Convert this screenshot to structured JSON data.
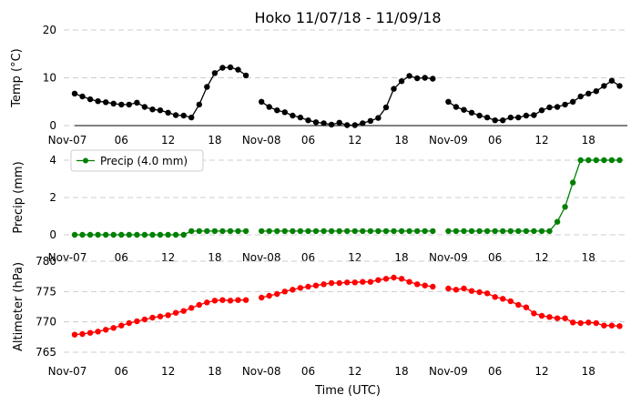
{
  "chart_data": {
    "title": "Hoko 11/07/18 - 11/09/18",
    "xlabel": "Time (UTC)",
    "x_tick_labels": [
      "Nov-07",
      "06",
      "12",
      "18",
      "Nov-08",
      "06",
      "12",
      "18",
      "Nov-09",
      "06",
      "12",
      "18"
    ],
    "x_tick_hours": [
      0,
      6,
      12,
      18,
      24,
      30,
      36,
      42,
      48,
      54,
      60,
      66
    ],
    "x_range_hours": [
      0,
      71
    ],
    "panels": [
      {
        "type": "line",
        "ylabel": "Temp (°C)",
        "ylim": [
          0,
          20
        ],
        "yticks": [
          0,
          10,
          20
        ],
        "color": "#000000",
        "series": [
          {
            "values": [
              [
                0,
                6.7
              ],
              [
                1,
                6.1
              ],
              [
                2,
                5.5
              ],
              [
                3,
                5.1
              ],
              [
                4,
                4.9
              ],
              [
                5,
                4.6
              ],
              [
                6,
                4.4
              ],
              [
                7,
                4.4
              ],
              [
                8,
                4.8
              ],
              [
                9,
                3.9
              ],
              [
                10,
                3.4
              ],
              [
                11,
                3.2
              ],
              [
                12,
                2.7
              ],
              [
                13,
                2.2
              ],
              [
                14,
                2.1
              ],
              [
                15,
                1.7
              ],
              [
                16,
                4.4
              ],
              [
                17,
                8.1
              ],
              [
                18,
                11.0
              ],
              [
                19,
                12.1
              ],
              [
                20,
                12.2
              ],
              [
                21,
                11.7
              ],
              [
                22,
                10.5
              ],
              [
                24,
                5.0
              ],
              [
                25,
                3.9
              ],
              [
                26,
                3.2
              ],
              [
                27,
                2.8
              ],
              [
                28,
                2.1
              ],
              [
                29,
                1.7
              ],
              [
                30,
                1.1
              ],
              [
                31,
                0.7
              ],
              [
                32,
                0.5
              ],
              [
                33,
                0.2
              ],
              [
                34,
                0.6
              ],
              [
                35,
                0.1
              ],
              [
                36,
                0.1
              ],
              [
                37,
                0.5
              ],
              [
                38,
                1.0
              ],
              [
                39,
                1.6
              ],
              [
                40,
                3.8
              ],
              [
                41,
                7.7
              ],
              [
                42,
                9.3
              ],
              [
                43,
                10.4
              ],
              [
                44,
                9.9
              ],
              [
                45,
                10.0
              ],
              [
                46,
                9.8
              ],
              [
                48,
                5.0
              ],
              [
                49,
                3.9
              ],
              [
                50,
                3.3
              ],
              [
                51,
                2.7
              ],
              [
                52,
                2.1
              ],
              [
                53,
                1.7
              ],
              [
                54,
                1.1
              ],
              [
                55,
                1.1
              ],
              [
                56,
                1.7
              ],
              [
                57,
                1.7
              ],
              [
                58,
                2.1
              ],
              [
                59,
                2.2
              ],
              [
                60,
                3.2
              ],
              [
                61,
                3.8
              ],
              [
                62,
                3.9
              ],
              [
                63,
                4.4
              ],
              [
                64,
                5.0
              ],
              [
                65,
                6.1
              ],
              [
                66,
                6.7
              ],
              [
                67,
                7.2
              ],
              [
                68,
                8.3
              ],
              [
                69,
                9.4
              ],
              [
                70,
                8.3
              ]
            ]
          }
        ]
      },
      {
        "type": "line",
        "ylabel": "Precip (mm)",
        "ylim": [
          0,
          4
        ],
        "yticks": [
          0,
          2,
          4
        ],
        "color": "#008000",
        "legend": "Precip (4.0 mm)",
        "legend_position": "upper-left",
        "series": [
          {
            "name": "Precip (4.0 mm)",
            "values": [
              [
                0,
                0
              ],
              [
                1,
                0
              ],
              [
                2,
                0
              ],
              [
                3,
                0
              ],
              [
                4,
                0
              ],
              [
                5,
                0
              ],
              [
                6,
                0
              ],
              [
                7,
                0
              ],
              [
                8,
                0
              ],
              [
                9,
                0
              ],
              [
                10,
                0
              ],
              [
                11,
                0
              ],
              [
                12,
                0
              ],
              [
                13,
                0
              ],
              [
                14,
                0
              ],
              [
                15,
                0.2
              ],
              [
                16,
                0.2
              ],
              [
                17,
                0.2
              ],
              [
                18,
                0.2
              ],
              [
                19,
                0.2
              ],
              [
                20,
                0.2
              ],
              [
                21,
                0.2
              ],
              [
                22,
                0.2
              ],
              [
                24,
                0.2
              ],
              [
                25,
                0.2
              ],
              [
                26,
                0.2
              ],
              [
                27,
                0.2
              ],
              [
                28,
                0.2
              ],
              [
                29,
                0.2
              ],
              [
                30,
                0.2
              ],
              [
                31,
                0.2
              ],
              [
                32,
                0.2
              ],
              [
                33,
                0.2
              ],
              [
                34,
                0.2
              ],
              [
                35,
                0.2
              ],
              [
                36,
                0.2
              ],
              [
                37,
                0.2
              ],
              [
                38,
                0.2
              ],
              [
                39,
                0.2
              ],
              [
                40,
                0.2
              ],
              [
                41,
                0.2
              ],
              [
                42,
                0.2
              ],
              [
                43,
                0.2
              ],
              [
                44,
                0.2
              ],
              [
                45,
                0.2
              ],
              [
                46,
                0.2
              ],
              [
                48,
                0.2
              ],
              [
                49,
                0.2
              ],
              [
                50,
                0.2
              ],
              [
                51,
                0.2
              ],
              [
                52,
                0.2
              ],
              [
                53,
                0.2
              ],
              [
                54,
                0.2
              ],
              [
                55,
                0.2
              ],
              [
                56,
                0.2
              ],
              [
                57,
                0.2
              ],
              [
                58,
                0.2
              ],
              [
                59,
                0.2
              ],
              [
                60,
                0.2
              ],
              [
                61,
                0.2
              ],
              [
                62,
                0.7
              ],
              [
                63,
                1.5
              ],
              [
                64,
                2.8
              ],
              [
                65,
                4.0
              ],
              [
                66,
                4.0
              ],
              [
                67,
                4.0
              ],
              [
                68,
                4.0
              ],
              [
                69,
                4.0
              ],
              [
                70,
                4.0
              ]
            ]
          }
        ]
      },
      {
        "type": "line",
        "ylabel": "Altimeter (hPa)",
        "ylim": [
          765,
          780
        ],
        "yticks": [
          765,
          770,
          775,
          780
        ],
        "color": "#ff0000",
        "series": [
          {
            "values": [
              [
                0,
                767.9
              ],
              [
                1,
                768.0
              ],
              [
                2,
                768.2
              ],
              [
                3,
                768.4
              ],
              [
                4,
                768.7
              ],
              [
                5,
                769.0
              ],
              [
                6,
                769.4
              ],
              [
                7,
                769.8
              ],
              [
                8,
                770.1
              ],
              [
                9,
                770.4
              ],
              [
                10,
                770.7
              ],
              [
                11,
                770.9
              ],
              [
                12,
                771.1
              ],
              [
                13,
                771.5
              ],
              [
                14,
                771.8
              ],
              [
                15,
                772.3
              ],
              [
                16,
                772.8
              ],
              [
                17,
                773.2
              ],
              [
                18,
                773.5
              ],
              [
                19,
                773.6
              ],
              [
                20,
                773.5
              ],
              [
                21,
                773.6
              ],
              [
                22,
                773.6
              ],
              [
                24,
                774.0
              ],
              [
                25,
                774.3
              ],
              [
                26,
                774.6
              ],
              [
                27,
                775.0
              ],
              [
                28,
                775.3
              ],
              [
                29,
                775.6
              ],
              [
                30,
                775.8
              ],
              [
                31,
                776.0
              ],
              [
                32,
                776.2
              ],
              [
                33,
                776.4
              ],
              [
                34,
                776.4
              ],
              [
                35,
                776.5
              ],
              [
                36,
                776.5
              ],
              [
                37,
                776.6
              ],
              [
                38,
                776.6
              ],
              [
                39,
                776.9
              ],
              [
                40,
                777.1
              ],
              [
                41,
                777.3
              ],
              [
                42,
                777.1
              ],
              [
                43,
                776.6
              ],
              [
                44,
                776.2
              ],
              [
                45,
                776.0
              ],
              [
                46,
                775.8
              ],
              [
                48,
                775.5
              ],
              [
                49,
                775.3
              ],
              [
                50,
                775.5
              ],
              [
                51,
                775.1
              ],
              [
                52,
                774.9
              ],
              [
                53,
                774.7
              ],
              [
                54,
                774.1
              ],
              [
                55,
                773.8
              ],
              [
                56,
                773.4
              ],
              [
                57,
                772.8
              ],
              [
                58,
                772.4
              ],
              [
                59,
                771.4
              ],
              [
                60,
                771.0
              ],
              [
                61,
                770.8
              ],
              [
                62,
                770.6
              ],
              [
                63,
                770.6
              ],
              [
                64,
                769.9
              ],
              [
                65,
                769.8
              ],
              [
                66,
                769.9
              ],
              [
                67,
                769.8
              ],
              [
                68,
                769.4
              ],
              [
                69,
                769.4
              ],
              [
                70,
                769.3
              ]
            ]
          }
        ]
      }
    ]
  }
}
